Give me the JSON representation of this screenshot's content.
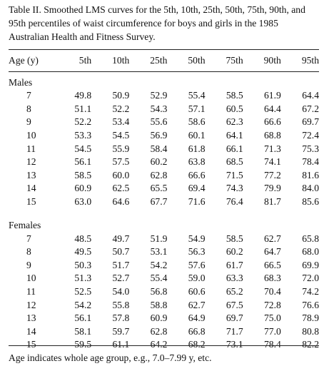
{
  "caption": "Table II. Smoothed LMS curves for the 5th, 10th, 25th, 50th, 75th, 90th, and 95th percentiles of waist circumference for boys and girls in the 1985 Australian Health and Fitness Survey.",
  "header": {
    "age": "Age (y)",
    "percentiles": [
      "5th",
      "10th",
      "25th",
      "50th",
      "75th",
      "90th",
      "95th"
    ]
  },
  "groups": [
    {
      "label": "Males",
      "rows": [
        {
          "age": "7",
          "values": [
            "49.8",
            "50.9",
            "52.9",
            "55.4",
            "58.5",
            "61.9",
            "64.4"
          ]
        },
        {
          "age": "8",
          "values": [
            "51.1",
            "52.2",
            "54.3",
            "57.1",
            "60.5",
            "64.4",
            "67.2"
          ]
        },
        {
          "age": "9",
          "values": [
            "52.2",
            "53.4",
            "55.6",
            "58.6",
            "62.3",
            "66.6",
            "69.7"
          ]
        },
        {
          "age": "10",
          "values": [
            "53.3",
            "54.5",
            "56.9",
            "60.1",
            "64.1",
            "68.8",
            "72.4"
          ]
        },
        {
          "age": "11",
          "values": [
            "54.5",
            "55.9",
            "58.4",
            "61.8",
            "66.1",
            "71.3",
            "75.3"
          ]
        },
        {
          "age": "12",
          "values": [
            "56.1",
            "57.5",
            "60.2",
            "63.8",
            "68.5",
            "74.1",
            "78.4"
          ]
        },
        {
          "age": "13",
          "values": [
            "58.5",
            "60.0",
            "62.8",
            "66.6",
            "71.5",
            "77.2",
            "81.6"
          ]
        },
        {
          "age": "14",
          "values": [
            "60.9",
            "62.5",
            "65.5",
            "69.4",
            "74.3",
            "79.9",
            "84.0"
          ]
        },
        {
          "age": "15",
          "values": [
            "63.0",
            "64.6",
            "67.7",
            "71.6",
            "76.4",
            "81.7",
            "85.6"
          ]
        }
      ]
    },
    {
      "label": "Females",
      "rows": [
        {
          "age": "7",
          "values": [
            "48.5",
            "49.7",
            "51.9",
            "54.9",
            "58.5",
            "62.7",
            "65.8"
          ]
        },
        {
          "age": "8",
          "values": [
            "49.5",
            "50.7",
            "53.1",
            "56.3",
            "60.2",
            "64.7",
            "68.0"
          ]
        },
        {
          "age": "9",
          "values": [
            "50.3",
            "51.7",
            "54.2",
            "57.6",
            "61.7",
            "66.5",
            "69.9"
          ]
        },
        {
          "age": "10",
          "values": [
            "51.3",
            "52.7",
            "55.4",
            "59.0",
            "63.3",
            "68.3",
            "72.0"
          ]
        },
        {
          "age": "11",
          "values": [
            "52.5",
            "54.0",
            "56.8",
            "60.6",
            "65.2",
            "70.4",
            "74.2"
          ]
        },
        {
          "age": "12",
          "values": [
            "54.2",
            "55.8",
            "58.8",
            "62.7",
            "67.5",
            "72.8",
            "76.6"
          ]
        },
        {
          "age": "13",
          "values": [
            "56.1",
            "57.8",
            "60.9",
            "64.9",
            "69.7",
            "75.0",
            "78.9"
          ]
        },
        {
          "age": "14",
          "values": [
            "58.1",
            "59.7",
            "62.8",
            "66.8",
            "71.7",
            "77.0",
            "80.8"
          ]
        },
        {
          "age": "15",
          "values": [
            "59.5",
            "61.1",
            "64.2",
            "68.2",
            "73.1",
            "78.4",
            "82.2"
          ]
        }
      ]
    }
  ],
  "footnote": "Age indicates whole age group, e.g., 7.0–7.99 y, etc."
}
